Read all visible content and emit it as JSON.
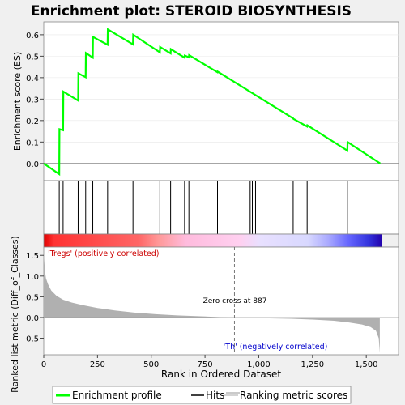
{
  "chart_data": {
    "type": "line",
    "title": "Enrichment plot: STEROID BIOSYNTHESIS",
    "top_panel": {
      "ylabel": "Enrichment score (ES)",
      "ylim": [
        -0.08,
        0.66
      ],
      "yticks": [
        0.0,
        0.1,
        0.2,
        0.3,
        0.4,
        0.5,
        0.6
      ],
      "ytick_labels": [
        "0.0",
        "0.1",
        "0.2",
        "0.3",
        "0.4",
        "0.5",
        "0.6"
      ],
      "series": [
        {
          "name": "Enrichment profile",
          "color": "#00ff00",
          "x": [
            0,
            72,
            73,
            90,
            91,
            160,
            161,
            195,
            196,
            228,
            229,
            297,
            298,
            415,
            416,
            540,
            541,
            590,
            591,
            655,
            656,
            675,
            676,
            808,
            809,
            1160,
            1161,
            1225,
            1226,
            1412,
            1413,
            1565
          ],
          "y": [
            0.0,
            -0.05,
            0.16,
            0.155,
            0.335,
            0.293,
            0.42,
            0.402,
            0.515,
            0.493,
            0.59,
            0.553,
            0.625,
            0.555,
            0.6,
            0.518,
            0.543,
            0.513,
            0.533,
            0.493,
            0.503,
            0.495,
            0.505,
            0.425,
            0.428,
            0.21,
            0.208,
            0.172,
            0.178,
            0.06,
            0.1,
            0.0
          ]
        }
      ]
    },
    "hits": {
      "name": "Hits",
      "positions": [
        72,
        90,
        160,
        195,
        228,
        297,
        415,
        540,
        590,
        655,
        675,
        808,
        960,
        970,
        985,
        1160,
        1225,
        1412
      ]
    },
    "bottom_panel": {
      "ylabel": "Ranked list metric (Diff_of_Classes)",
      "xlabel": "Rank in Ordered Dataset",
      "ylim": [
        -0.9,
        1.7
      ],
      "yticks": [
        -0.5,
        0.0,
        0.5,
        1.0,
        1.5
      ],
      "ytick_labels": [
        "-0.5",
        "0.0",
        "0.5",
        "1.0",
        "1.5"
      ],
      "xlim": [
        0,
        1650
      ],
      "xticks": [
        0,
        250,
        500,
        750,
        1000,
        1250,
        1500
      ],
      "xtick_labels": [
        "0",
        "250",
        "500",
        "750",
        "1,000",
        "1,250",
        "1,500"
      ],
      "series": [
        {
          "name": "Ranking metric scores",
          "color": "#b0b0b0",
          "x": [
            0,
            5,
            10,
            20,
            35,
            60,
            90,
            130,
            180,
            250,
            330,
            420,
            520,
            620,
            720,
            820,
            887,
            950,
            1050,
            1150,
            1250,
            1350,
            1420,
            1480,
            1520,
            1545,
            1558,
            1563
          ],
          "y": [
            1.6,
            1.15,
            0.95,
            0.8,
            0.65,
            0.52,
            0.43,
            0.36,
            0.3,
            0.23,
            0.17,
            0.12,
            0.08,
            0.05,
            0.03,
            0.01,
            0.0,
            -0.01,
            -0.02,
            -0.03,
            -0.05,
            -0.08,
            -0.12,
            -0.17,
            -0.23,
            -0.32,
            -0.5,
            -0.85
          ]
        }
      ],
      "zero_cross": 887,
      "annotations": {
        "zero_cross_label": "Zero cross at 887",
        "pos_label": "'Tregs' (positively correlated)",
        "neg_label": "'Th' (negatively correlated)"
      }
    },
    "dataset_size": 1565,
    "legend": {
      "placement": "bottom",
      "entries": [
        "Enrichment profile",
        "Hits",
        "Ranking metric scores"
      ]
    }
  },
  "colors": {
    "profile": "#00ff00",
    "pos_label": "#cc0000",
    "neg_label": "#0000cc",
    "zero_cross_line": "#777777"
  }
}
